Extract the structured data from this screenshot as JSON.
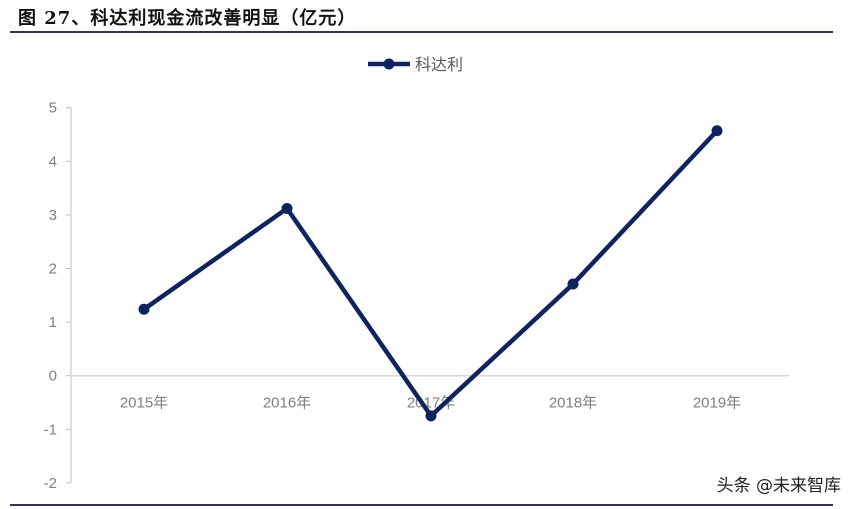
{
  "header": {
    "title": "图 27、科达利现金流改善明显（亿元）"
  },
  "watermark": "头条 @未来智库",
  "chart_data": {
    "type": "line",
    "title": "",
    "categories": [
      "2015年",
      "2016年",
      "2017年",
      "2018年",
      "2019年"
    ],
    "series": [
      {
        "name": "科达利",
        "values": [
          1.24,
          3.12,
          -0.75,
          1.71,
          4.57
        ],
        "color": "#0e2461"
      }
    ],
    "ylim": [
      -2,
      5
    ],
    "yticks": [
      "-2",
      "-1",
      "0",
      "1",
      "2",
      "3",
      "4",
      "5"
    ],
    "grid": false,
    "legend": "top-center"
  }
}
